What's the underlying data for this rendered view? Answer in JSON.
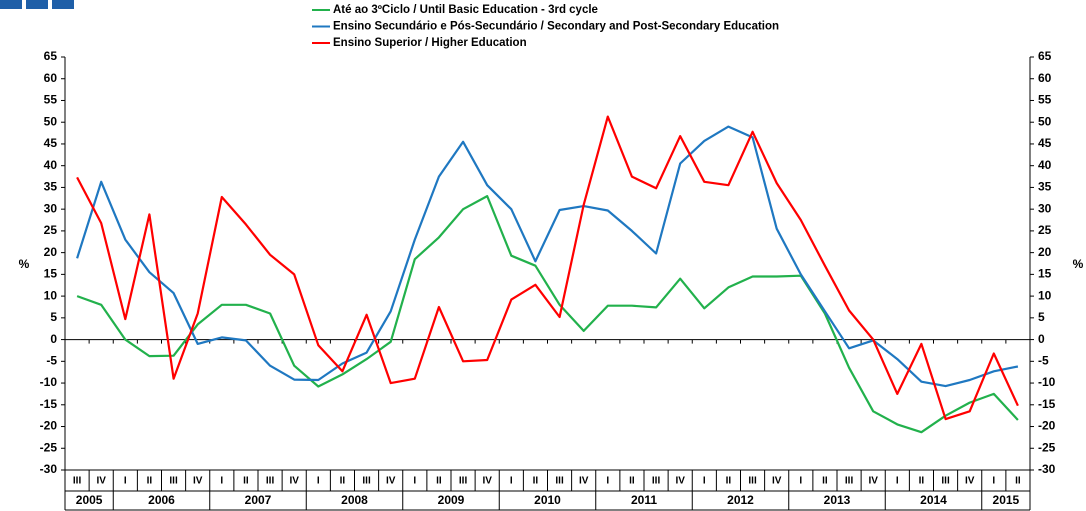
{
  "chart_data": {
    "type": "line",
    "y_label": "%",
    "categories": [
      "III",
      "IV",
      "I",
      "II",
      "III",
      "IV",
      "I",
      "II",
      "III",
      "IV",
      "I",
      "II",
      "III",
      "IV",
      "I",
      "II",
      "III",
      "IV",
      "I",
      "II",
      "III",
      "IV",
      "I",
      "II",
      "III",
      "IV",
      "I",
      "II",
      "III",
      "IV",
      "I",
      "II",
      "III",
      "IV",
      "I",
      "II",
      "III",
      "IV",
      "I",
      "II"
    ],
    "years": [
      "2005",
      "2006",
      "2007",
      "2008",
      "2009",
      "2010",
      "2011",
      "2012",
      "2013",
      "2014",
      "2015"
    ],
    "series": [
      {
        "name": "Até ao 3ºCiclo / Until Basic Education - 3rd cycle",
        "color": "#22b14c",
        "values": [
          10,
          8,
          0,
          -3.8,
          -3.7,
          3.5,
          8,
          8,
          6,
          -6,
          -10.8,
          -8,
          -4.5,
          -0.5,
          18.5,
          23.5,
          30,
          33,
          19.3,
          17,
          8,
          2,
          7.8,
          7.8,
          7.4,
          14,
          7.2,
          12,
          14.5,
          14.5,
          14.7,
          6,
          -6.5,
          -16.5,
          -19.5,
          -21.3,
          -17.5,
          -14.5,
          -12.5,
          -18.5
        ]
      },
      {
        "name": "Ensino Secundário e Pós-Secundário / Secondary and Post-Secondary Education",
        "color": "#1f78c1",
        "values": [
          18.7,
          36.3,
          23,
          15.5,
          10.7,
          -1,
          0.5,
          -0.2,
          -6,
          -9.2,
          -9.3,
          -5.5,
          -3,
          6.5,
          23,
          37.5,
          45.5,
          35.5,
          30,
          18,
          29.8,
          30.7,
          29.7,
          25,
          19.8,
          40.5,
          45.7,
          49,
          46.5,
          25.5,
          15,
          6.5,
          -2,
          -0.2,
          -4.5,
          -9.7,
          -10.7,
          -9.3,
          -7.3,
          -6.2
        ]
      },
      {
        "name": "Ensino Superior / Higher Education",
        "color": "#ff0000",
        "values": [
          37.3,
          26.8,
          4.7,
          28.8,
          -9,
          6,
          32.8,
          26.5,
          19.5,
          15,
          -1.3,
          -7.3,
          5.7,
          -10,
          -9,
          7.5,
          -5,
          -4.7,
          9.2,
          12.6,
          5.2,
          31,
          51.3,
          37.5,
          34.8,
          46.8,
          36.3,
          35.5,
          47.8,
          36,
          27.5,
          17,
          6.7,
          0,
          -12.5,
          -1,
          -18.3,
          -16.5,
          -3.2,
          -15.2
        ]
      }
    ],
    "ylim": [
      -30,
      65
    ],
    "yticks": [
      -30,
      -25,
      -20,
      -15,
      -10,
      -5,
      0,
      5,
      10,
      15,
      20,
      25,
      30,
      35,
      40,
      45,
      50,
      55,
      60,
      65
    ]
  }
}
